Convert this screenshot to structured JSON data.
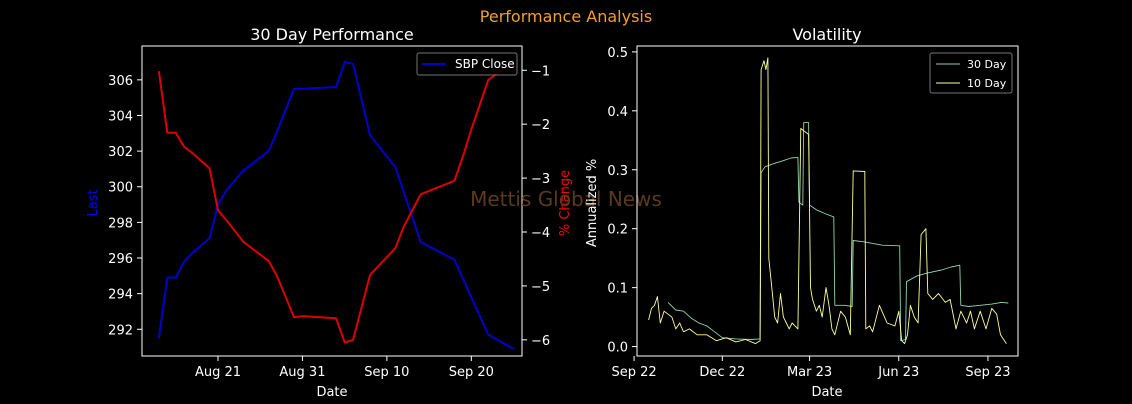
{
  "figure": {
    "title": "Performance Analysis",
    "title_color": "#f0a030",
    "background": "#000000",
    "watermark": "Mettis Global News",
    "watermark_color": "#5a3a1c"
  },
  "chart_data": [
    {
      "type": "line",
      "title": "30 Day Performance",
      "xlabel": "Date",
      "ylabel": "Last",
      "ylabel_color": "#0000ff",
      "y2label": "% Change",
      "y2label_color": "#ff0000",
      "x_ticks": [
        "Aug 21",
        "Aug 31",
        "Sep 10",
        "Sep 20"
      ],
      "y_ticks": [
        292,
        294,
        296,
        298,
        300,
        302,
        304,
        306
      ],
      "y2_ticks": [
        "−1",
        "−2",
        "−3",
        "−4",
        "−5",
        "−6"
      ],
      "ylim": [
        290.5,
        307.9
      ],
      "y2lim": [
        -6.3,
        -0.55
      ],
      "legend": "upper right",
      "series": [
        {
          "name": "SBP Close",
          "color": "#0000cc",
          "axis": "left",
          "points": [
            [
              "2023-08-14",
              291.5
            ],
            [
              "2023-08-15",
              294.9
            ],
            [
              "2023-08-16",
              294.9
            ],
            [
              "2023-08-17",
              295.8
            ],
            [
              "2023-08-18",
              296.3
            ],
            [
              "2023-08-20",
              297.1
            ],
            [
              "2023-08-21",
              299.0
            ],
            [
              "2023-08-22",
              299.8
            ],
            [
              "2023-08-24",
              300.9
            ],
            [
              "2023-08-27",
              302.0
            ],
            [
              "2023-08-28",
              303.1
            ],
            [
              "2023-08-30",
              305.5
            ],
            [
              "2023-08-31",
              305.5
            ],
            [
              "2023-09-04",
              305.6
            ],
            [
              "2023-09-05",
              307.0
            ],
            [
              "2023-09-06",
              306.9
            ],
            [
              "2023-09-08",
              302.9
            ],
            [
              "2023-09-11",
              301.1
            ],
            [
              "2023-09-12",
              299.7
            ],
            [
              "2023-09-14",
              296.9
            ],
            [
              "2023-09-18",
              295.9
            ],
            [
              "2023-09-22",
              291.7
            ],
            [
              "2023-09-25",
              290.9
            ]
          ]
        },
        {
          "name": "% Change",
          "color": "#dd0000",
          "axis": "right",
          "points": [
            [
              "2023-08-14",
              -1.02
            ],
            [
              "2023-08-15",
              -2.16
            ],
            [
              "2023-08-16",
              -2.16
            ],
            [
              "2023-08-17",
              -2.42
            ],
            [
              "2023-08-18",
              -2.54
            ],
            [
              "2023-08-20",
              -2.82
            ],
            [
              "2023-08-21",
              -3.6
            ],
            [
              "2023-08-22",
              -3.78
            ],
            [
              "2023-08-24",
              -4.18
            ],
            [
              "2023-08-27",
              -4.54
            ],
            [
              "2023-08-28",
              -4.82
            ],
            [
              "2023-08-29",
              -5.2
            ],
            [
              "2023-08-30",
              -5.58
            ],
            [
              "2023-08-31",
              -5.56
            ],
            [
              "2023-09-04",
              -5.6
            ],
            [
              "2023-09-05",
              -6.05
            ],
            [
              "2023-09-06",
              -6.0
            ],
            [
              "2023-09-08",
              -4.8
            ],
            [
              "2023-09-11",
              -4.3
            ],
            [
              "2023-09-12",
              -3.9
            ],
            [
              "2023-09-14",
              -3.3
            ],
            [
              "2023-09-18",
              -3.05
            ],
            [
              "2023-09-19",
              -2.6
            ],
            [
              "2023-09-20",
              -2.1
            ],
            [
              "2023-09-22",
              -1.18
            ],
            [
              "2023-09-24",
              -0.95
            ],
            [
              "2023-09-25",
              -0.92
            ]
          ]
        }
      ]
    },
    {
      "type": "line",
      "title": "Volatility",
      "xlabel": "Date",
      "ylabel": "Annualized %",
      "x_ticks": [
        "Sep 22",
        "Dec 22",
        "Mar 23",
        "Jun 23",
        "Sep 23"
      ],
      "y_ticks": [
        "0.0",
        "0.1",
        "0.2",
        "0.3",
        "0.4",
        "0.5"
      ],
      "ylim": [
        -0.016,
        0.51
      ],
      "legend": "upper right",
      "series": [
        {
          "name": "30 Day",
          "color": "#8fd4b0",
          "points": [
            [
              "2022-10-06",
              0.075
            ],
            [
              "2022-10-14",
              0.062
            ],
            [
              "2022-10-22",
              0.06
            ],
            [
              "2022-10-30",
              0.048
            ],
            [
              "2022-11-07",
              0.04
            ],
            [
              "2022-11-15",
              0.035
            ],
            [
              "2022-11-23",
              0.025
            ],
            [
              "2022-12-01",
              0.015
            ],
            [
              "2022-12-15",
              0.013
            ],
            [
              "2022-12-30",
              0.012
            ],
            [
              "2023-01-09",
              0.013
            ],
            [
              "2023-01-10",
              0.295
            ],
            [
              "2023-01-14",
              0.305
            ],
            [
              "2023-01-22",
              0.31
            ],
            [
              "2023-02-01",
              0.315
            ],
            [
              "2023-02-10",
              0.32
            ],
            [
              "2023-02-17",
              0.321
            ],
            [
              "2023-02-18",
              0.245
            ],
            [
              "2023-02-22",
              0.24
            ],
            [
              "2023-02-23",
              0.38
            ],
            [
              "2023-02-28",
              0.38
            ],
            [
              "2023-03-01",
              0.24
            ],
            [
              "2023-03-08",
              0.232
            ],
            [
              "2023-03-18",
              0.225
            ],
            [
              "2023-03-26",
              0.22
            ],
            [
              "2023-03-27",
              0.07
            ],
            [
              "2023-04-06",
              0.07
            ],
            [
              "2023-04-14",
              0.068
            ],
            [
              "2023-04-15",
              0.18
            ],
            [
              "2023-04-25",
              0.178
            ],
            [
              "2023-05-05",
              0.175
            ],
            [
              "2023-05-15",
              0.172
            ],
            [
              "2023-06-02",
              0.171
            ],
            [
              "2023-06-03",
              0.01
            ],
            [
              "2023-06-08",
              0.012
            ],
            [
              "2023-06-09",
              0.11
            ],
            [
              "2023-06-20",
              0.12
            ],
            [
              "2023-07-01",
              0.125
            ],
            [
              "2023-07-15",
              0.13
            ],
            [
              "2023-07-25",
              0.135
            ],
            [
              "2023-08-03",
              0.138
            ],
            [
              "2023-08-04",
              0.07
            ],
            [
              "2023-08-12",
              0.068
            ],
            [
              "2023-08-24",
              0.07
            ],
            [
              "2023-09-05",
              0.072
            ],
            [
              "2023-09-15",
              0.075
            ],
            [
              "2023-09-22",
              0.074
            ]
          ]
        },
        {
          "name": "10 Day",
          "color": "#ffff99",
          "points": [
            [
              "2022-09-16",
              0.045
            ],
            [
              "2022-09-19",
              0.065
            ],
            [
              "2022-09-22",
              0.07
            ],
            [
              "2022-09-25",
              0.085
            ],
            [
              "2022-09-28",
              0.04
            ],
            [
              "2022-10-02",
              0.06
            ],
            [
              "2022-10-06",
              0.055
            ],
            [
              "2022-10-10",
              0.05
            ],
            [
              "2022-10-14",
              0.03
            ],
            [
              "2022-10-18",
              0.04
            ],
            [
              "2022-10-22",
              0.025
            ],
            [
              "2022-10-28",
              0.03
            ],
            [
              "2022-11-05",
              0.02
            ],
            [
              "2022-11-15",
              0.02
            ],
            [
              "2022-11-25",
              0.01
            ],
            [
              "2022-12-05",
              0.015
            ],
            [
              "2022-12-15",
              0.008
            ],
            [
              "2022-12-25",
              0.012
            ],
            [
              "2023-01-04",
              0.005
            ],
            [
              "2023-01-09",
              0.01
            ],
            [
              "2023-01-10",
              0.47
            ],
            [
              "2023-01-13",
              0.485
            ],
            [
              "2023-01-15",
              0.47
            ],
            [
              "2023-01-17",
              0.49
            ],
            [
              "2023-01-18",
              0.15
            ],
            [
              "2023-01-21",
              0.1
            ],
            [
              "2023-01-24",
              0.05
            ],
            [
              "2023-01-27",
              0.04
            ],
            [
              "2023-01-30",
              0.09
            ],
            [
              "2023-02-02",
              0.05
            ],
            [
              "2023-02-05",
              0.04
            ],
            [
              "2023-02-08",
              0.03
            ],
            [
              "2023-02-11",
              0.04
            ],
            [
              "2023-02-14",
              0.035
            ],
            [
              "2023-02-17",
              0.03
            ],
            [
              "2023-02-20",
              0.37
            ],
            [
              "2023-02-24",
              0.365
            ],
            [
              "2023-02-28",
              0.36
            ],
            [
              "2023-03-02",
              0.1
            ],
            [
              "2023-03-04",
              0.08
            ],
            [
              "2023-03-08",
              0.06
            ],
            [
              "2023-03-11",
              0.07
            ],
            [
              "2023-03-14",
              0.05
            ],
            [
              "2023-03-18",
              0.1
            ],
            [
              "2023-03-21",
              0.07
            ],
            [
              "2023-03-24",
              0.03
            ],
            [
              "2023-03-27",
              0.02
            ],
            [
              "2023-04-02",
              0.06
            ],
            [
              "2023-04-07",
              0.05
            ],
            [
              "2023-04-12",
              0.02
            ],
            [
              "2023-04-15",
              0.298
            ],
            [
              "2023-04-27",
              0.297
            ],
            [
              "2023-04-28",
              0.03
            ],
            [
              "2023-05-02",
              0.035
            ],
            [
              "2023-05-05",
              0.025
            ],
            [
              "2023-05-12",
              0.07
            ],
            [
              "2023-05-20",
              0.04
            ],
            [
              "2023-05-28",
              0.035
            ],
            [
              "2023-06-01",
              0.06
            ],
            [
              "2023-06-04",
              0.01
            ],
            [
              "2023-06-07",
              0.005
            ],
            [
              "2023-06-10",
              0.02
            ],
            [
              "2023-06-13",
              0.07
            ],
            [
              "2023-06-17",
              0.05
            ],
            [
              "2023-06-21",
              0.04
            ],
            [
              "2023-06-24",
              0.19
            ],
            [
              "2023-06-29",
              0.2
            ],
            [
              "2023-07-01",
              0.09
            ],
            [
              "2023-07-06",
              0.08
            ],
            [
              "2023-07-12",
              0.09
            ],
            [
              "2023-07-19",
              0.075
            ],
            [
              "2023-07-24",
              0.08
            ],
            [
              "2023-07-30",
              0.03
            ],
            [
              "2023-08-04",
              0.06
            ],
            [
              "2023-08-07",
              0.05
            ],
            [
              "2023-08-10",
              0.04
            ],
            [
              "2023-08-14",
              0.06
            ],
            [
              "2023-08-18",
              0.03
            ],
            [
              "2023-08-24",
              0.06
            ],
            [
              "2023-08-30",
              0.03
            ],
            [
              "2023-09-05",
              0.065
            ],
            [
              "2023-09-10",
              0.055
            ],
            [
              "2023-09-14",
              0.02
            ],
            [
              "2023-09-20",
              0.005
            ]
          ]
        }
      ]
    }
  ]
}
